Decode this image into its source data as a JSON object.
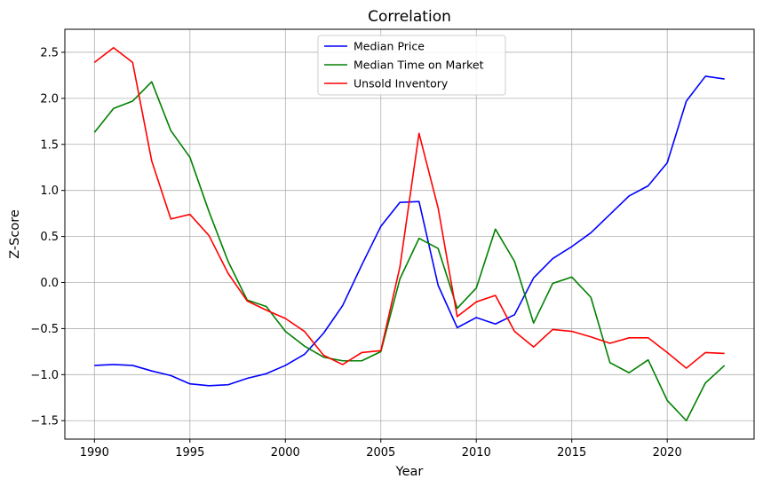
{
  "chart_data": {
    "type": "line",
    "title": "Correlation",
    "xlabel": "Year",
    "ylabel": "Z-Score",
    "xlim": [
      1988.45,
      2024.55
    ],
    "ylim": [
      -1.7,
      2.75
    ],
    "grid": true,
    "legend_position": "top-center",
    "x_ticks": [
      1990,
      1995,
      2000,
      2005,
      2010,
      2015,
      2020
    ],
    "x_tick_labels": [
      "1990",
      "1995",
      "2000",
      "2005",
      "2010",
      "2015",
      "2020"
    ],
    "y_ticks": [
      -1.5,
      -1.0,
      -0.5,
      0.0,
      0.5,
      1.0,
      1.5,
      2.0,
      2.5
    ],
    "y_tick_labels": [
      "−1.5",
      "−1.0",
      "−0.5",
      "0.0",
      "0.5",
      "1.0",
      "1.5",
      "2.0",
      "2.5"
    ],
    "x": [
      1990,
      1991,
      1992,
      1993,
      1994,
      1995,
      1996,
      1997,
      1998,
      1999,
      2000,
      2001,
      2002,
      2003,
      2004,
      2005,
      2006,
      2007,
      2008,
      2009,
      2010,
      2011,
      2012,
      2013,
      2014,
      2015,
      2016,
      2017,
      2018,
      2019,
      2020,
      2021,
      2022,
      2023
    ],
    "series": [
      {
        "name": "Median Price",
        "color": "#0000ff",
        "values": [
          -0.9,
          -0.89,
          -0.9,
          -0.96,
          -1.01,
          -1.1,
          -1.12,
          -1.11,
          -1.04,
          -0.99,
          -0.9,
          -0.78,
          -0.55,
          -0.25,
          0.19,
          0.61,
          0.87,
          0.88,
          -0.03,
          -0.49,
          -0.38,
          -0.45,
          -0.35,
          0.05,
          0.26,
          0.39,
          0.54,
          0.74,
          0.94,
          1.05,
          1.3,
          1.97,
          2.24,
          2.21
        ]
      },
      {
        "name": "Median Time on Market",
        "color": "#008000",
        "values": [
          1.63,
          1.89,
          1.97,
          2.18,
          1.65,
          1.36,
          0.77,
          0.23,
          -0.19,
          -0.26,
          -0.53,
          -0.69,
          -0.81,
          -0.85,
          -0.85,
          -0.75,
          0.04,
          0.48,
          0.37,
          -0.28,
          -0.06,
          0.58,
          0.23,
          -0.44,
          -0.01,
          0.06,
          -0.16,
          -0.87,
          -0.98,
          -0.84,
          -1.28,
          -1.5,
          -1.09,
          -0.9
        ]
      },
      {
        "name": "Unsold Inventory",
        "color": "#ff0000",
        "values": [
          2.39,
          2.55,
          2.39,
          1.32,
          0.69,
          0.74,
          0.51,
          0.1,
          -0.2,
          -0.3,
          -0.39,
          -0.53,
          -0.79,
          -0.89,
          -0.76,
          -0.74,
          0.17,
          1.62,
          0.81,
          -0.37,
          -0.21,
          -0.14,
          -0.53,
          -0.7,
          -0.51,
          -0.53,
          -0.59,
          -0.66,
          -0.6,
          -0.6,
          -0.76,
          -0.93,
          -0.76,
          -0.77
        ]
      }
    ]
  }
}
